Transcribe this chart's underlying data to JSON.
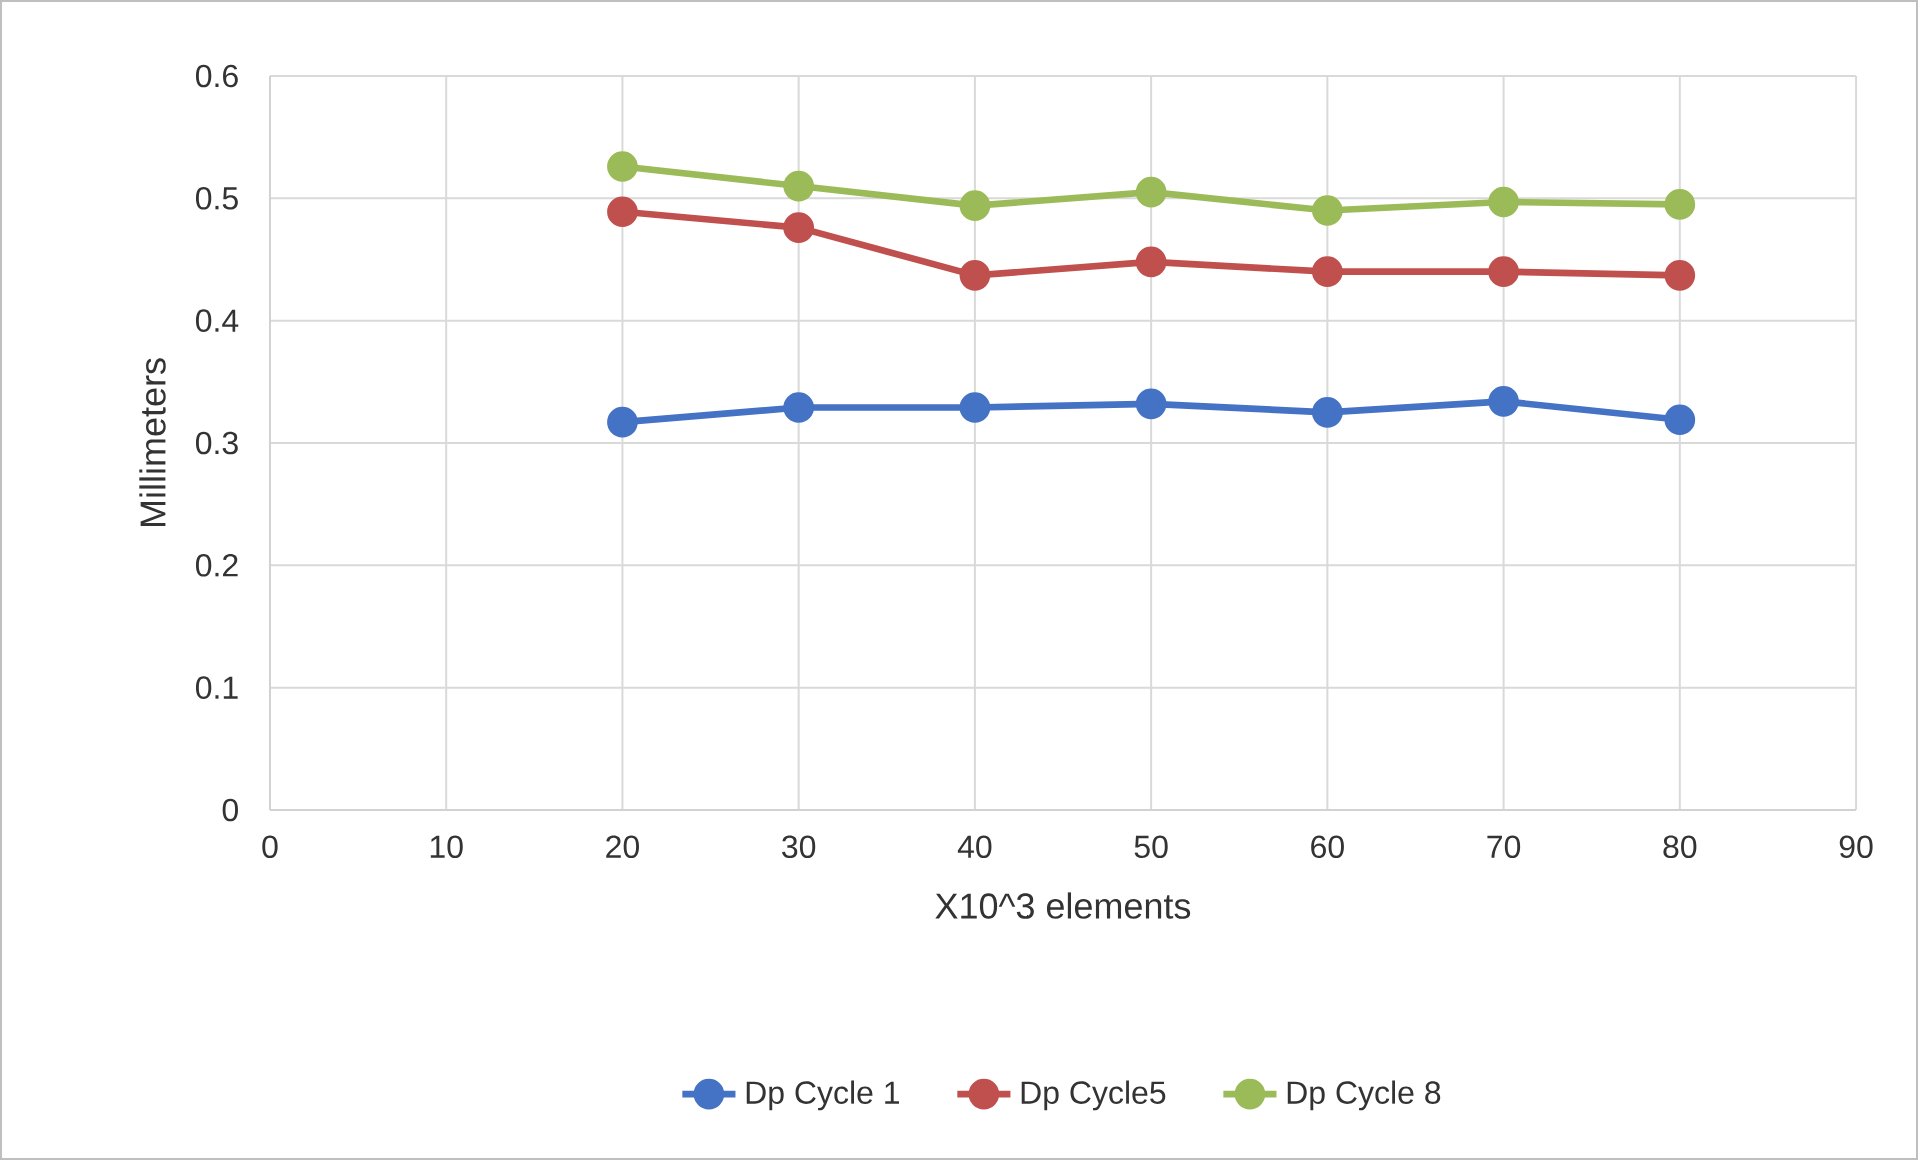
{
  "chart_data": {
    "type": "line",
    "xlabel": "X10^3 elements",
    "ylabel": "Millimeters",
    "x": [
      20,
      30,
      40,
      50,
      60,
      70,
      80
    ],
    "series": [
      {
        "name": "Dp Cycle 1",
        "color": "#4472c4",
        "values": [
          0.317,
          0.329,
          0.329,
          0.332,
          0.325,
          0.334,
          0.319
        ]
      },
      {
        "name": "Dp Cycle5",
        "color": "#c0504d",
        "values": [
          0.489,
          0.476,
          0.437,
          0.448,
          0.44,
          0.44,
          0.437
        ]
      },
      {
        "name": "Dp Cycle 8",
        "color": "#9bbb59",
        "values": [
          0.526,
          0.51,
          0.494,
          0.505,
          0.49,
          0.497,
          0.495
        ]
      }
    ],
    "xlim": [
      0,
      90
    ],
    "ylim": [
      0,
      0.6
    ],
    "xticks": [
      0,
      10,
      20,
      30,
      40,
      50,
      60,
      70,
      80,
      90
    ],
    "yticks": [
      0,
      0.1,
      0.2,
      0.3,
      0.4,
      0.5,
      0.6
    ],
    "grid": true,
    "legend": "bottom",
    "marker": "circle",
    "line_style": "solid"
  }
}
